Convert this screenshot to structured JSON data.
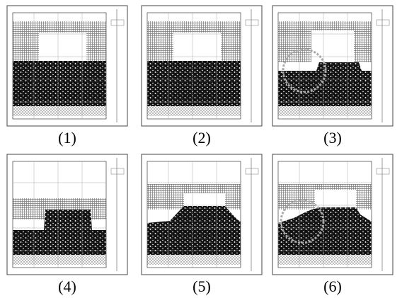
{
  "panels": [
    {
      "caption": "(1)"
    },
    {
      "caption": "(2)"
    },
    {
      "caption": "(3)"
    },
    {
      "caption": "(4)"
    },
    {
      "caption": "(5)"
    },
    {
      "caption": "(6)"
    }
  ]
}
